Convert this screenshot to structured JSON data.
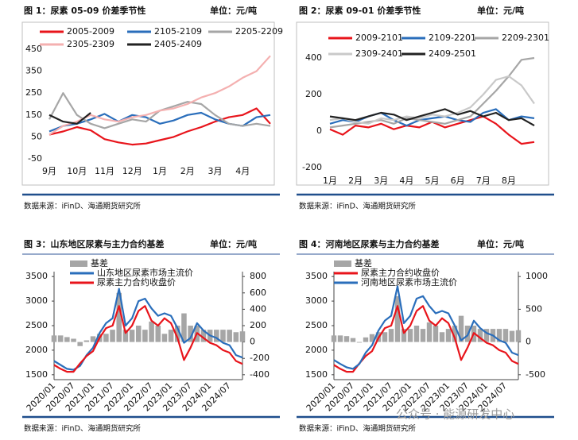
{
  "chart_data": [
    {
      "type": "line",
      "title": "图 1：尿素 05-09 价差季节性",
      "unit": "单位：元/吨",
      "source": "数据来源：iFinD、海通期货研究所",
      "categories": [
        "9月",
        null,
        "10月",
        null,
        "11月",
        null,
        "12月",
        null,
        "1月",
        null,
        "2月",
        null,
        "3月",
        null,
        "4月",
        null,
        null
      ],
      "ylim": [
        -50,
        450
      ],
      "yticks": [
        -50,
        50,
        150,
        250,
        350,
        450
      ],
      "grid": false,
      "series": [
        {
          "name": "2005-2009",
          "color": "#e8141b",
          "values": [
            60,
            75,
            95,
            80,
            40,
            25,
            15,
            20,
            35,
            50,
            75,
            95,
            120,
            140,
            150,
            180,
            110
          ]
        },
        {
          "name": "2105-2109",
          "color": "#2a6ebb",
          "values": [
            75,
            100,
            110,
            130,
            155,
            120,
            150,
            140,
            110,
            125,
            150,
            160,
            130,
            110,
            100,
            140,
            150
          ]
        },
        {
          "name": "2205-2209",
          "color": "#a6a6a6",
          "values": [
            130,
            250,
            150,
            110,
            90,
            110,
            130,
            120,
            170,
            190,
            210,
            200,
            150,
            110,
            100,
            110,
            100
          ]
        },
        {
          "name": "2305-2309",
          "color": "#f4b0b0",
          "values": [
            60,
            100,
            120,
            150,
            130,
            120,
            140,
            150,
            170,
            180,
            200,
            230,
            250,
            280,
            320,
            350,
            420
          ]
        },
        {
          "name": "2405-2409",
          "color": "#222222",
          "values": [
            150,
            120,
            110,
            160,
            null,
            null,
            null,
            null,
            null,
            null,
            null,
            null,
            null,
            null,
            null,
            null,
            null
          ]
        }
      ]
    },
    {
      "type": "line",
      "title": "图 2：尿素 09-01 价差季节性",
      "unit": "单位：元/吨",
      "source": "数据来源：iFinD、海通期货研究所",
      "categories": [
        "1月",
        null,
        "2月",
        null,
        "3月",
        null,
        "4月",
        null,
        "5月",
        null,
        "6月",
        null,
        "7月",
        null,
        "8月",
        null,
        null
      ],
      "ylim": [
        -200,
        400
      ],
      "yticks": [
        -200,
        0,
        200,
        400
      ],
      "grid": false,
      "series": [
        {
          "name": "2009-2101",
          "color": "#e8141b",
          "values": [
            10,
            -20,
            30,
            20,
            40,
            10,
            30,
            20,
            50,
            20,
            40,
            60,
            80,
            40,
            -20,
            -70,
            -60
          ]
        },
        {
          "name": "2109-2201",
          "color": "#2a6ebb",
          "values": [
            40,
            60,
            50,
            80,
            100,
            60,
            30,
            60,
            70,
            80,
            60,
            50,
            100,
            120,
            60,
            80,
            70
          ]
        },
        {
          "name": "2209-2301",
          "color": "#a6a6a6",
          "values": [
            20,
            30,
            40,
            50,
            60,
            40,
            70,
            60,
            50,
            40,
            60,
            80,
            150,
            220,
            300,
            390,
            400
          ]
        },
        {
          "name": "2309-2401",
          "color": "#c9c9c9",
          "values": [
            60,
            70,
            50,
            40,
            70,
            60,
            80,
            70,
            90,
            80,
            100,
            130,
            200,
            280,
            300,
            250,
            150
          ]
        },
        {
          "name": "2409-2501",
          "color": "#222222",
          "values": [
            80,
            70,
            60,
            80,
            100,
            90,
            60,
            80,
            100,
            120,
            90,
            110,
            80,
            100,
            60,
            70,
            30
          ]
        }
      ]
    },
    {
      "type": "line",
      "title": "图 3：山东地区尿素与主力合约基差",
      "unit": "单位：元/吨",
      "source": "数据来源：iFinD、海通期货研究所",
      "categories": [
        "2020/01",
        null,
        null,
        "2020/07",
        null,
        null,
        "2021/01",
        null,
        null,
        "2021/07",
        null,
        null,
        "2022/01",
        null,
        null,
        "2022/07",
        null,
        null,
        "2023/01",
        null,
        null,
        "2023/07",
        null,
        null,
        "2024/01",
        null,
        null,
        "2024/07",
        null,
        null
      ],
      "ylim": [
        1400,
        3600
      ],
      "yticks": [
        1500,
        2000,
        2500,
        3000,
        3500
      ],
      "y2lim": [
        -460,
        860
      ],
      "y2ticks": [
        -400,
        -200,
        0,
        200,
        400,
        600,
        800
      ],
      "grid": false,
      "series": [
        {
          "name": "基差",
          "color": "#a6a6a6",
          "axis": "y2",
          "style": "bar",
          "values": [
            80,
            80,
            60,
            40,
            -50,
            20,
            70,
            100,
            100,
            150,
            600,
            150,
            150,
            200,
            150,
            250,
            200,
            100,
            150,
            200,
            350,
            200,
            200,
            150,
            150,
            150,
            150,
            150,
            120,
            130
          ]
        },
        {
          "name": "山东地区尿素市场主流价",
          "color": "#2a6ebb",
          "values": [
            1780,
            1700,
            1620,
            1600,
            1680,
            1900,
            2050,
            2350,
            2550,
            2650,
            3250,
            2500,
            2650,
            3000,
            3050,
            2850,
            2700,
            2750,
            2700,
            2450,
            2150,
            2250,
            2550,
            2400,
            2300,
            2250,
            2150,
            2100,
            1900,
            1850
          ]
        },
        {
          "name": "尿素主力合约收盘价",
          "color": "#e8141b",
          "values": [
            1700,
            1620,
            1560,
            1560,
            1730,
            1880,
            1980,
            2250,
            2450,
            2500,
            2900,
            2350,
            2500,
            2800,
            2900,
            2600,
            2500,
            2650,
            2550,
            2250,
            1800,
            2050,
            2350,
            2250,
            2150,
            2100,
            2000,
            1950,
            1780,
            1720
          ]
        }
      ]
    },
    {
      "type": "line",
      "title": "图 4：河南地区尿素与主力合约基差",
      "unit": "单位：元/吨",
      "source": "数据来源：iFinD、海通期货研究所",
      "categories": [
        "2020/01",
        null,
        null,
        "2020/07",
        null,
        null,
        "2021/01",
        null,
        null,
        "2021/07",
        null,
        null,
        "2022/01",
        null,
        null,
        "2022/07",
        null,
        null,
        "2023/01",
        null,
        null,
        "2023/07",
        null,
        null,
        "2024/01",
        null,
        null,
        "2024/07",
        null,
        null
      ],
      "ylim": [
        1400,
        3600
      ],
      "yticks": [
        1500,
        2000,
        2500,
        3000,
        3500
      ],
      "y2lim": [
        -575,
        1075
      ],
      "y2ticks": [
        -500,
        0,
        500,
        1000
      ],
      "grid": false,
      "series": [
        {
          "name": "基差",
          "color": "#a6a6a6",
          "axis": "y2",
          "style": "bar",
          "values": [
            100,
            100,
            90,
            60,
            -10,
            70,
            120,
            150,
            150,
            200,
            700,
            200,
            200,
            250,
            200,
            300,
            250,
            150,
            200,
            250,
            400,
            250,
            250,
            200,
            200,
            200,
            200,
            200,
            170,
            180
          ]
        },
        {
          "name": "尿素主力合约收盘价",
          "color": "#e8141b",
          "values": [
            1700,
            1620,
            1560,
            1560,
            1730,
            1880,
            1980,
            2250,
            2450,
            2500,
            2900,
            2350,
            2500,
            2800,
            2900,
            2600,
            2500,
            2650,
            2550,
            2250,
            1800,
            2050,
            2350,
            2250,
            2150,
            2100,
            2000,
            1950,
            1780,
            1720
          ]
        },
        {
          "name": "河南地区尿素市场主流价",
          "color": "#2a6ebb",
          "values": [
            1800,
            1720,
            1650,
            1620,
            1720,
            1950,
            2100,
            2400,
            2600,
            2700,
            3300,
            2550,
            2700,
            3050,
            3100,
            2900,
            2750,
            2800,
            2750,
            2500,
            2200,
            2300,
            2600,
            2450,
            2350,
            2300,
            2200,
            2150,
            1950,
            1900
          ]
        }
      ]
    }
  ],
  "watermark": "公众号 · 能源研发中心"
}
